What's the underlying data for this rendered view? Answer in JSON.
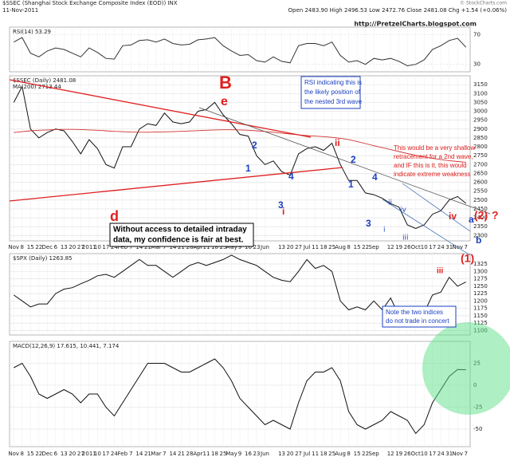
{
  "header": {
    "title": "$SSEC (Shanghai Stock Exchange Composite Index (EOD)) INX",
    "date": "11-Nov-2011",
    "quote": "Open 2483.90  High 2496.53  Low 2472.76  Close 2481.08  Chg +1.54 (+0.06%)",
    "credit": "© StockCharts.com",
    "url": "http://PretzelCharts.blogspot.com"
  },
  "annotations": [
    "B",
    "e",
    "d",
    "2",
    "1",
    "3",
    "4",
    "i",
    "ii",
    "2",
    "1",
    "3",
    "4",
    "ii",
    "i",
    "iii",
    "iv",
    "iii",
    "iv",
    "(2)",
    "?",
    "(1)",
    "a",
    "b"
  ],
  "notes": [
    [
      "RSI indicating this is",
      "the likely position of",
      "the nested 3rd wave"
    ],
    [
      "This would be a very shallow",
      "retracement for a 2nd wave,",
      "and IF this is it, this would",
      "indicate extreme weakness"
    ],
    [
      "Without access to detailed intraday",
      "data, my confidence is fair at best."
    ],
    [
      "Note the two indices",
      "do not trade in concert"
    ]
  ],
  "chart_data": [
    {
      "type": "line",
      "categories": [
        "Nov",
        "8",
        "15",
        "22",
        "Dec",
        "6",
        "13",
        "20",
        "27",
        "2011",
        "10",
        "17",
        "24",
        "Feb",
        "7",
        "14",
        "21",
        "Mar",
        "7",
        "14",
        "21",
        "28",
        "Apr",
        "11",
        "18",
        "25",
        "May",
        "9",
        "16",
        "23",
        "Jun",
        null,
        "13",
        "20",
        "27",
        "Jul",
        "11",
        "18",
        "25",
        "Aug",
        "8",
        "15",
        "22",
        "Sep",
        null,
        "12",
        "19",
        "26",
        "Oct",
        "10",
        "17",
        "24",
        "31",
        "Nov",
        "7"
      ],
      "series": [
        {
          "name": "RSI(14) 53.29",
          "color": "#333333",
          "values": [
            60,
            66,
            45,
            40,
            48,
            52,
            50,
            45,
            40,
            52,
            46,
            38,
            37,
            55,
            56,
            62,
            63,
            60,
            64,
            58,
            56,
            57,
            63,
            64,
            66,
            55,
            48,
            42,
            43,
            35,
            33,
            40,
            34,
            32,
            55,
            58,
            58,
            55,
            60,
            42,
            33,
            35,
            30,
            38,
            36,
            38,
            34,
            28,
            30,
            36,
            50,
            55,
            62,
            65,
            53
          ]
        }
      ],
      "ylim": [
        20,
        80
      ],
      "yticks": [
        30,
        70
      ],
      "grid": true
    },
    {
      "type": "line",
      "categories": [
        "Nov",
        "8",
        "15",
        "22",
        "Dec",
        "6",
        "13",
        "20",
        "27",
        "2011",
        "10",
        "17",
        "24",
        "Feb",
        "7",
        "14",
        "21",
        "Mar",
        "7",
        "14",
        "21",
        "28",
        "Apr",
        "11",
        "18",
        "25",
        "May",
        "9",
        "16",
        "23",
        "Jun",
        null,
        "13",
        "20",
        "27",
        "Jul",
        "11",
        "18",
        "25",
        "Aug",
        "8",
        "15",
        "22",
        "Sep",
        null,
        "12",
        "19",
        "26",
        "Oct",
        "10",
        "17",
        "24",
        "31",
        "Nov",
        "7"
      ],
      "series": [
        {
          "name": "$SSEC (Daily) 2481.08",
          "color": "#111111",
          "values": [
            3050,
            3140,
            2900,
            2850,
            2880,
            2900,
            2890,
            2830,
            2760,
            2840,
            2790,
            2700,
            2680,
            2800,
            2800,
            2900,
            2930,
            2920,
            2990,
            2940,
            2930,
            2940,
            3000,
            3010,
            3050,
            2980,
            2930,
            2870,
            2860,
            2750,
            2700,
            2720,
            2660,
            2640,
            2760,
            2790,
            2800,
            2780,
            2820,
            2700,
            2610,
            2610,
            2540,
            2530,
            2510,
            2480,
            2460,
            2360,
            2340,
            2360,
            2420,
            2440,
            2500,
            2520,
            2481
          ]
        },
        {
          "name": "MA(200) 2713.44",
          "color": "#d33030",
          "values": [
            2880,
            2885,
            2890,
            2893,
            2895,
            2897,
            2898,
            2898,
            2897,
            2895,
            2893,
            2890,
            2887,
            2885,
            2883,
            2882,
            2882,
            2883,
            2884,
            2885,
            2887,
            2889,
            2891,
            2893,
            2895,
            2896,
            2896,
            2895,
            2893,
            2890,
            2886,
            2882,
            2877,
            2872,
            2867,
            2863,
            2860,
            2857,
            2853,
            2848,
            2840,
            2830,
            2818,
            2806,
            2795,
            2784,
            2773,
            2762,
            2752,
            2743,
            2735,
            2728,
            2722,
            2717,
            2713
          ]
        }
      ],
      "ylim": [
        2270,
        3200
      ],
      "yticks": [
        2300,
        2350,
        2400,
        2450,
        2500,
        2550,
        2600,
        2650,
        2700,
        2750,
        2800,
        2850,
        2900,
        2950,
        3000,
        3050,
        3100,
        3150
      ],
      "grid": true
    },
    {
      "type": "line",
      "categories": [
        "Nov",
        "8",
        "15",
        "22",
        "Dec",
        "6",
        "13",
        "20",
        "27",
        "2011",
        "10",
        "17",
        "24",
        "Feb",
        "7",
        "14",
        "21",
        "Mar",
        "7",
        "14",
        "21",
        "28",
        "Apr",
        "11",
        "18",
        "25",
        "May",
        "9",
        "16",
        "23",
        "Jun",
        null,
        "13",
        "20",
        "27",
        "Jul",
        "11",
        "18",
        "25",
        "Aug",
        "8",
        "15",
        "22",
        "Sep",
        null,
        "12",
        "19",
        "26",
        "Oct",
        "10",
        "17",
        "24",
        "31",
        "Nov",
        "7"
      ],
      "series": [
        {
          "name": "$SPX (Daily) 1263.85",
          "color": "#111111",
          "values": [
            1220,
            1200,
            1180,
            1190,
            1190,
            1225,
            1240,
            1245,
            1258,
            1270,
            1285,
            1290,
            1280,
            1300,
            1320,
            1340,
            1320,
            1320,
            1300,
            1280,
            1300,
            1320,
            1330,
            1320,
            1330,
            1340,
            1355,
            1340,
            1330,
            1320,
            1300,
            1280,
            1270,
            1265,
            1300,
            1340,
            1310,
            1320,
            1300,
            1200,
            1170,
            1180,
            1170,
            1200,
            1170,
            1210,
            1150,
            1140,
            1120,
            1160,
            1220,
            1230,
            1280,
            1250,
            1264
          ]
        }
      ],
      "ylim": [
        1085,
        1360
      ],
      "yticks": [
        1100,
        1125,
        1150,
        1175,
        1200,
        1225,
        1250,
        1275,
        1300,
        1325
      ],
      "grid": true
    },
    {
      "type": "line",
      "categories": [
        "Nov",
        "8",
        "15",
        "22",
        "Dec",
        "6",
        "13",
        "20",
        "27",
        "2011",
        "10",
        "17",
        "24",
        "Feb",
        "7",
        "14",
        "21",
        "Mar",
        "7",
        "14",
        "21",
        "28",
        "Apr",
        "11",
        "18",
        "25",
        "May",
        "9",
        "16",
        "23",
        "Jun",
        null,
        "13",
        "20",
        "27",
        "Jul",
        "11",
        "18",
        "25",
        "Aug",
        "8",
        "15",
        "22",
        "Sep",
        null,
        "12",
        "19",
        "26",
        "Oct",
        "10",
        "17",
        "24",
        "31",
        "Nov",
        "7"
      ],
      "series": [
        {
          "name": "MACD(12,26,9) 17.615, 10.441, 7.174",
          "color": "#111111",
          "values": [
            20,
            25,
            10,
            -10,
            -15,
            -10,
            -5,
            -10,
            -20,
            -10,
            -10,
            -25,
            -35,
            -20,
            -5,
            10,
            25,
            25,
            25,
            20,
            15,
            15,
            20,
            25,
            30,
            20,
            5,
            -15,
            -25,
            -35,
            -45,
            -40,
            -45,
            -50,
            -20,
            5,
            15,
            15,
            20,
            5,
            -30,
            -45,
            -50,
            -45,
            -40,
            -30,
            -35,
            -40,
            -55,
            -45,
            -20,
            -5,
            10,
            18,
            17.6
          ]
        }
      ],
      "ylim": [
        -70,
        50
      ],
      "yticks": [
        -50,
        -25,
        0,
        25
      ],
      "grid": true
    }
  ]
}
